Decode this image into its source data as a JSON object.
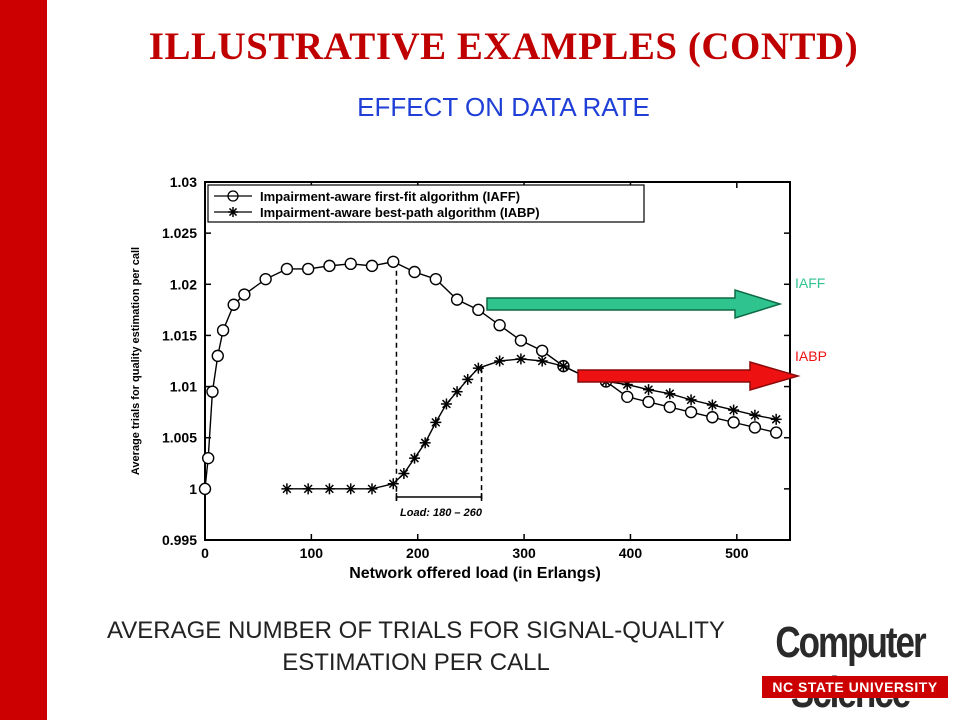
{
  "slide": {
    "title": "ILLUSTRATIVE EXAMPLES (CONTD)",
    "subtitle": "EFFECT ON DATA RATE",
    "caption_line1": "AVERAGE NUMBER OF TRIALS FOR SIGNAL-QUALITY",
    "caption_line2": "ESTIMATION PER CALL",
    "accent_color": "#cc0000",
    "subtitle_color": "#1f3fd6"
  },
  "logo": {
    "line1": "Computer Science",
    "line2": "NC STATE UNIVERSITY"
  },
  "annotations": {
    "iaff_arrow_label": "IAFF",
    "iaff_arrow_color": "#2fc48f",
    "iabp_arrow_label": "IABP",
    "iabp_arrow_color": "#ee1111",
    "load_bracket_label": "Load: 180 – 260",
    "load_bracket_range": [
      180,
      260
    ]
  },
  "chart_data": {
    "type": "line",
    "title": "",
    "xlabel": "Network offered load (in Erlangs)",
    "ylabel": "Average trials for quality estimation per call",
    "xlim": [
      0,
      550
    ],
    "ylim": [
      0.995,
      1.03
    ],
    "xticks": [
      0,
      100,
      200,
      300,
      400,
      500
    ],
    "yticks": [
      0.995,
      1,
      1.005,
      1.01,
      1.015,
      1.02,
      1.025,
      1.03
    ],
    "ytick_labels": [
      "0.995",
      "1",
      "1.005",
      "1.01",
      "1.015",
      "1.02",
      "1.025",
      "1.03"
    ],
    "grid": false,
    "legend_position": "top-left",
    "series": [
      {
        "name": "Impairment-aware first-fit algorithm (IAFF)",
        "marker": "circle",
        "x": [
          0,
          3,
          7,
          12,
          17,
          27,
          37,
          57,
          77,
          97,
          117,
          137,
          157,
          177,
          197,
          217,
          237,
          257,
          277,
          297,
          317,
          337,
          357,
          377,
          397,
          417,
          437,
          457,
          477,
          497,
          517,
          537
        ],
        "y": [
          1.0,
          1.003,
          1.0095,
          1.013,
          1.0155,
          1.018,
          1.019,
          1.0205,
          1.0215,
          1.0215,
          1.0218,
          1.022,
          1.0218,
          1.0222,
          1.0212,
          1.0205,
          1.0185,
          1.0175,
          1.016,
          1.0145,
          1.0135,
          1.012,
          1.011,
          1.0105,
          1.009,
          1.0085,
          1.008,
          1.0075,
          1.007,
          1.0065,
          1.006,
          1.0055
        ]
      },
      {
        "name": "Impairment-aware best-path algorithm (IABP)",
        "marker": "star",
        "x": [
          77,
          97,
          117,
          137,
          157,
          177,
          187,
          197,
          207,
          217,
          227,
          237,
          247,
          257,
          277,
          297,
          317,
          337,
          357,
          377,
          397,
          417,
          437,
          457,
          477,
          497,
          517,
          537
        ],
        "y": [
          1.0,
          1.0,
          1.0,
          1.0,
          1.0,
          1.0005,
          1.0015,
          1.003,
          1.0045,
          1.0065,
          1.0083,
          1.0095,
          1.0107,
          1.0118,
          1.0125,
          1.0127,
          1.0125,
          1.012,
          1.011,
          1.0105,
          1.0102,
          1.0097,
          1.0093,
          1.0087,
          1.0082,
          1.0077,
          1.0072,
          1.0068
        ]
      }
    ]
  }
}
